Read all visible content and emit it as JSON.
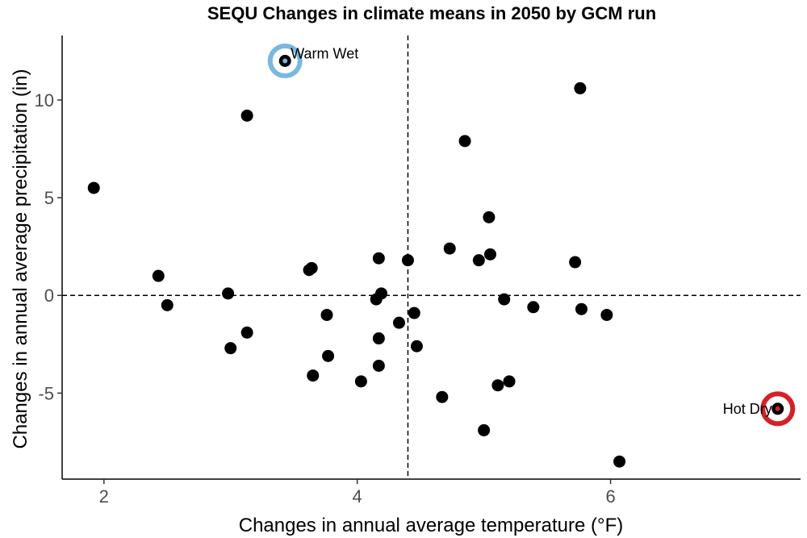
{
  "chart_data": {
    "type": "scatter",
    "title": "SEQU Changes in climate means in 2050 by GCM run",
    "xlabel": "Changes in annual average temperature (°F)",
    "ylabel": "Changes in annual average precipitation (in)",
    "xlim": [
      1.67,
      7.5
    ],
    "ylim": [
      -9.4,
      13.3
    ],
    "xticks": [
      2,
      4,
      6
    ],
    "yticks": [
      -5,
      0,
      5,
      10
    ],
    "grid": false,
    "reference_lines": {
      "x": 4.4,
      "y": 0
    },
    "point_color": "#000000",
    "points": [
      {
        "x": 1.92,
        "y": 5.5
      },
      {
        "x": 2.43,
        "y": 1.0
      },
      {
        "x": 2.5,
        "y": -0.5
      },
      {
        "x": 2.98,
        "y": 0.1
      },
      {
        "x": 3.0,
        "y": -2.7
      },
      {
        "x": 3.13,
        "y": -1.9
      },
      {
        "x": 3.13,
        "y": 9.2
      },
      {
        "x": 3.43,
        "y": 12.0
      },
      {
        "x": 3.62,
        "y": 1.3
      },
      {
        "x": 3.64,
        "y": 1.4
      },
      {
        "x": 3.65,
        "y": -4.1
      },
      {
        "x": 3.76,
        "y": -1.0
      },
      {
        "x": 3.77,
        "y": -3.1
      },
      {
        "x": 4.03,
        "y": -4.4
      },
      {
        "x": 4.15,
        "y": -0.2
      },
      {
        "x": 4.17,
        "y": -3.6
      },
      {
        "x": 4.17,
        "y": -2.2
      },
      {
        "x": 4.17,
        "y": 1.9
      },
      {
        "x": 4.19,
        "y": 0.1
      },
      {
        "x": 4.33,
        "y": -1.4
      },
      {
        "x": 4.4,
        "y": 1.8
      },
      {
        "x": 4.45,
        "y": -0.9
      },
      {
        "x": 4.47,
        "y": -2.6
      },
      {
        "x": 4.67,
        "y": -5.2
      },
      {
        "x": 4.73,
        "y": 2.4
      },
      {
        "x": 4.85,
        "y": 7.9
      },
      {
        "x": 4.96,
        "y": 1.8
      },
      {
        "x": 5.0,
        "y": -6.9
      },
      {
        "x": 5.04,
        "y": 4.0
      },
      {
        "x": 5.05,
        "y": 2.1
      },
      {
        "x": 5.11,
        "y": -4.6
      },
      {
        "x": 5.16,
        "y": -0.2
      },
      {
        "x": 5.2,
        "y": -4.4
      },
      {
        "x": 5.39,
        "y": -0.6
      },
      {
        "x": 5.72,
        "y": 1.7
      },
      {
        "x": 5.76,
        "y": 10.6
      },
      {
        "x": 5.77,
        "y": -0.7
      },
      {
        "x": 5.97,
        "y": -1.0
      },
      {
        "x": 6.07,
        "y": -8.5
      },
      {
        "x": 7.32,
        "y": -5.8
      }
    ],
    "highlights": [
      {
        "label": "Warm Wet",
        "x": 3.43,
        "y": 12.0,
        "color": "#7ab8e0",
        "label_side": "right"
      },
      {
        "label": "Hot Dry",
        "x": 7.32,
        "y": -5.8,
        "color": "#d62027",
        "label_side": "left"
      }
    ]
  }
}
